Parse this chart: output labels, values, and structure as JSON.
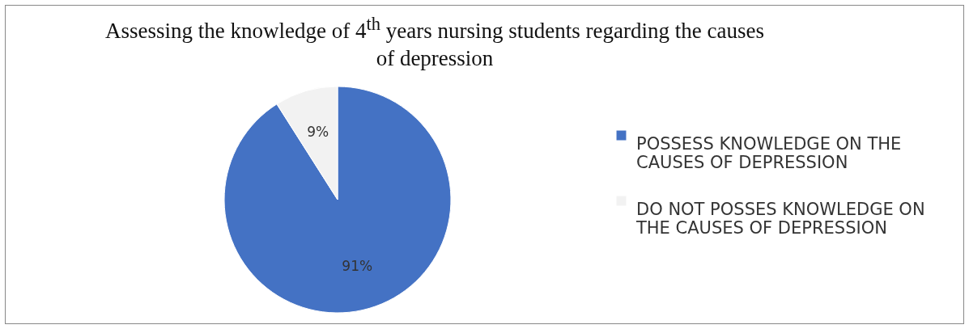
{
  "chart_data": {
    "type": "pie",
    "title": "Assessing the knowledge of 4$^{th}$ years nursing students regarding the causes of depression",
    "categories": [
      "POSSESS KNOWLEDGE ON THE CAUSES OF DEPRESSION",
      "DO NOT POSSES KNOWLEDGE ON THE CAUSES OF DEPRESSION"
    ],
    "values": [
      91,
      9
    ],
    "colors": [
      "#4472c4",
      "#f2f2f2"
    ],
    "value_labels": [
      "91%",
      "9%"
    ],
    "legend": "right"
  }
}
